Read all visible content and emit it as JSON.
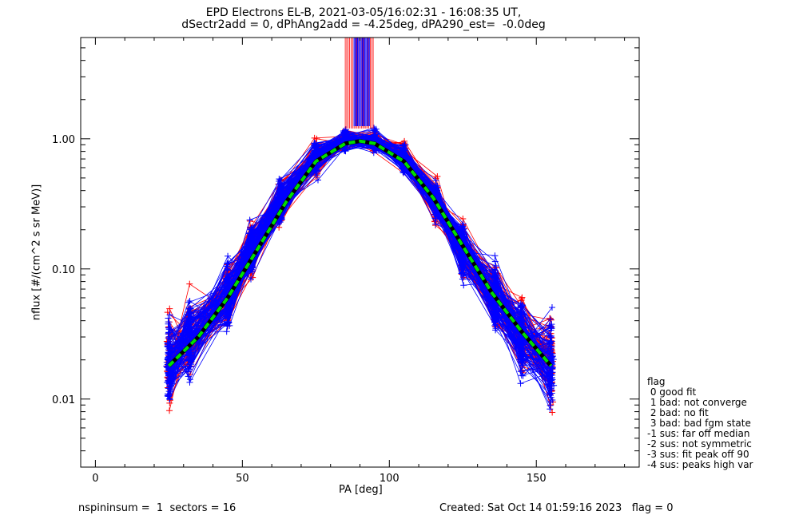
{
  "title_line1": "EPD Electrons EL-B, 2021-03-05/16:02:31 - 16:08:35 UT,",
  "title_line2": "dSectr2add = 0, dPhAng2add = -4.25deg, dPA290_est=  -0.0deg",
  "footer_left": "nspininsum =  1  sectors = 16",
  "footer_right": "Created: Sat Oct 14 01:59:16 2023   flag = 0",
  "legend": {
    "title": "flag",
    "items": [
      " 0 good fit",
      " 1 bad: not converge",
      " 2 bad: no fit",
      " 3 bad: bad fgm state",
      "-1 sus: far off median",
      "-2 sus: not symmetric",
      "-3 sus: fit peak off 90",
      "-4 sus: peaks high var"
    ]
  },
  "colors": {
    "red": "#ff0000",
    "blue": "#0000ff",
    "fit_black": "#000000",
    "fit_green": "#00dd00"
  },
  "chart_data": {
    "type": "line",
    "xlabel": "PA [deg]",
    "ylabel": "nflux [#/(cm^2 s sr MeV)]",
    "xlim": [
      -5,
      185
    ],
    "ylim": [
      0.003,
      6
    ],
    "yscale": "log",
    "x_ticks": [
      0,
      50,
      100,
      150
    ],
    "x_tick_labels": [
      "0",
      "50",
      "100",
      "150"
    ],
    "y_ticks": [
      0.01,
      0.1,
      1.0
    ],
    "y_tick_labels": [
      "0.01",
      "0.10",
      "1.00"
    ],
    "grid": false,
    "sector_pa": [
      25,
      32,
      45,
      53,
      63,
      75,
      85,
      95,
      105,
      116,
      125,
      136,
      145,
      155
    ],
    "median_profile": [
      0.02,
      0.03,
      0.06,
      0.14,
      0.33,
      0.72,
      0.97,
      0.95,
      0.72,
      0.33,
      0.14,
      0.06,
      0.03,
      0.02
    ],
    "series": [
      {
        "color": "red",
        "marker": "+",
        "x": [
          25,
          32,
          45,
          53,
          63,
          75,
          85,
          95,
          105,
          116,
          125,
          136,
          145,
          155
        ],
        "y": [
          0.02,
          0.03,
          0.06,
          0.14,
          0.33,
          0.72,
          0.97,
          0.95,
          0.72,
          0.33,
          0.14,
          0.06,
          0.03,
          0.02
        ]
      },
      {
        "color": "blue",
        "marker": "+",
        "x": [
          25,
          32,
          45,
          53,
          63,
          75,
          85,
          95,
          105,
          116,
          125,
          136,
          145,
          155
        ],
        "y": [
          0.02,
          0.03,
          0.06,
          0.14,
          0.33,
          0.72,
          0.97,
          0.95,
          0.72,
          0.33,
          0.14,
          0.06,
          0.03,
          0.02
        ]
      },
      {
        "color": "fit_black",
        "style": "solid",
        "x": [
          25,
          35,
          45,
          55,
          65,
          75,
          85,
          90,
          95,
          105,
          115,
          125,
          135,
          145,
          155
        ],
        "y": [
          0.018,
          0.03,
          0.06,
          0.14,
          0.33,
          0.67,
          0.92,
          0.96,
          0.92,
          0.67,
          0.35,
          0.15,
          0.065,
          0.033,
          0.018
        ]
      },
      {
        "color": "fit_green",
        "style": "dashed",
        "x": [
          25,
          35,
          45,
          55,
          65,
          75,
          85,
          90,
          95,
          105,
          115,
          125,
          135,
          145,
          155
        ],
        "y": [
          0.018,
          0.03,
          0.06,
          0.14,
          0.33,
          0.67,
          0.92,
          0.96,
          0.92,
          0.67,
          0.35,
          0.15,
          0.065,
          0.033,
          0.018
        ]
      }
    ]
  }
}
